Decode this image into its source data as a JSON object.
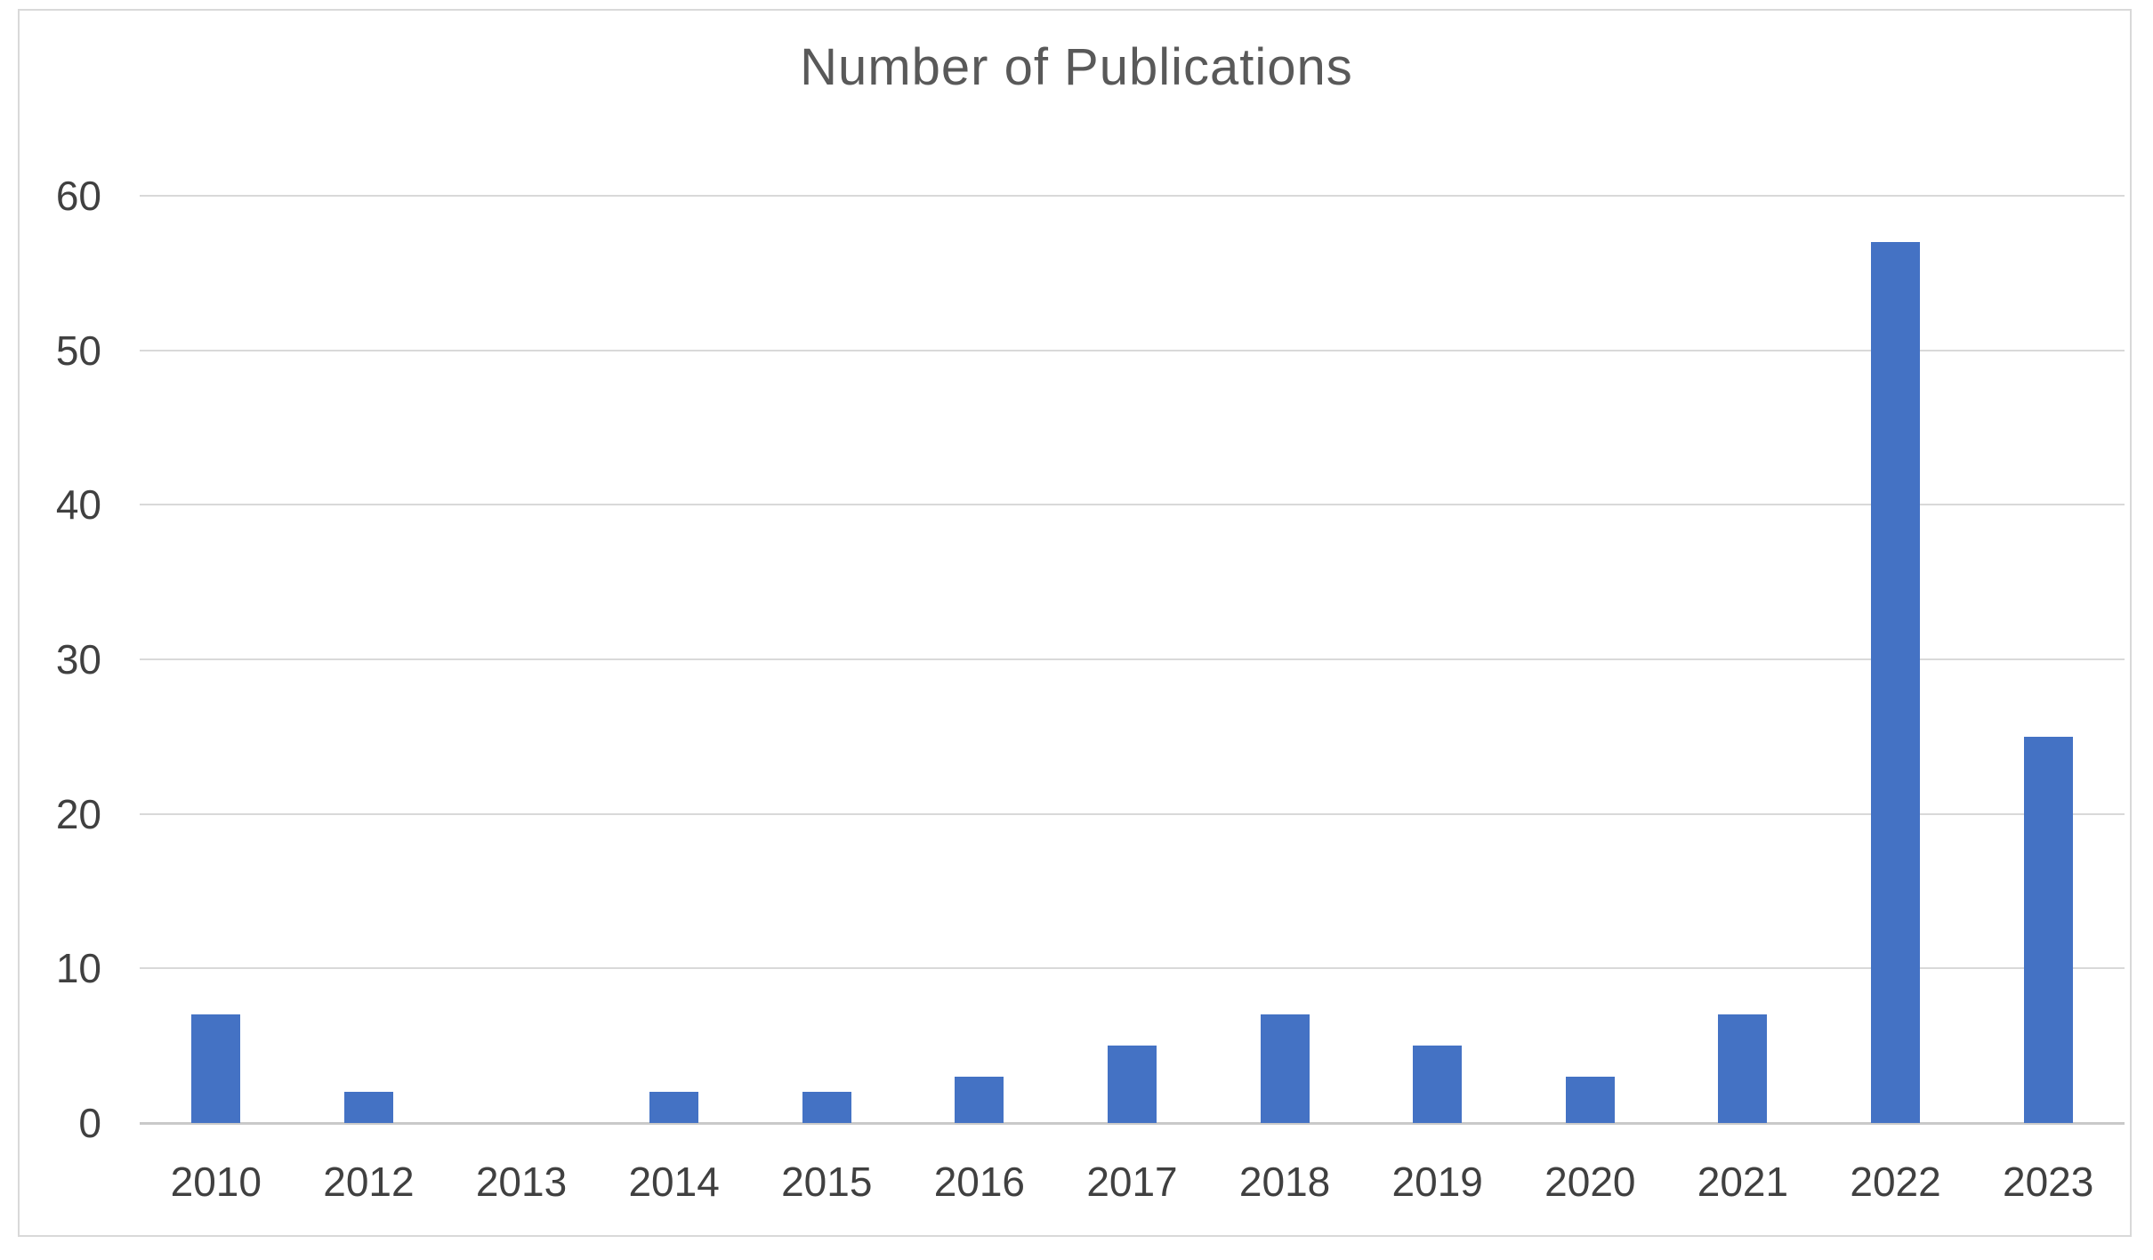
{
  "chart": {
    "colors": {
      "bar": "#4472C4",
      "gridline": "#D9D9D9",
      "axis_line": "#C9C9C9",
      "title_text": "#595959",
      "tick_text": "#404040",
      "border": "#D9D9D9",
      "background": "#FFFFFF"
    }
  },
  "chart_data": {
    "type": "bar",
    "title": "Number of Publications",
    "categories": [
      "2010",
      "2012",
      "2013",
      "2014",
      "2015",
      "2016",
      "2017",
      "2018",
      "2019",
      "2020",
      "2021",
      "2022",
      "2023"
    ],
    "values": [
      7,
      2,
      0,
      2,
      2,
      3,
      5,
      7,
      5,
      3,
      7,
      57,
      25
    ],
    "xlabel": "",
    "ylabel": "",
    "ylim": [
      0,
      60
    ],
    "yticks": [
      0,
      10,
      20,
      30,
      40,
      50,
      60
    ],
    "grid": "horizontal",
    "legend": "none",
    "bar_color": "#4472C4"
  }
}
